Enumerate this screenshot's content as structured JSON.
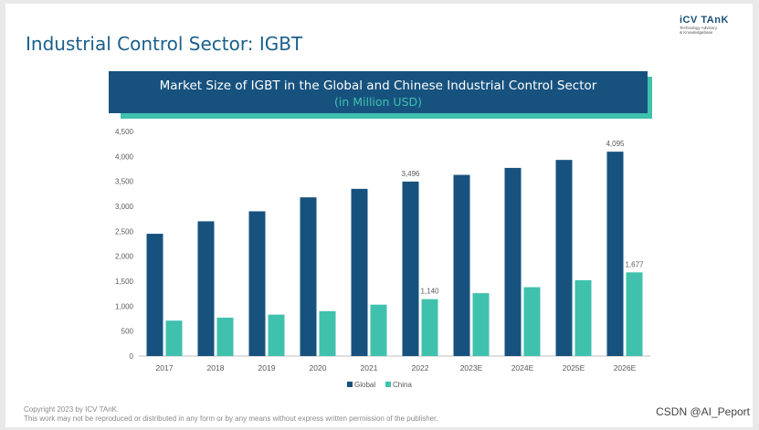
{
  "page": {
    "title": "Industrial Control Sector: IGBT",
    "logo_name": "iCV TAnK",
    "logo_sub1": "Technology Advisory",
    "logo_sub2": "& Knowledgebase",
    "banner_title": "Market Size of IGBT in the Global and Chinese Industrial Control Sector",
    "banner_subtitle": "(in Million USD)",
    "footer_line1": "Copyright  2023 by ICV TAnK.",
    "footer_line2": "This work may not be reproduced or distributed in any form or by any means without express written permission of the publisher.",
    "watermark": "CSDN @AI_Peport"
  },
  "colors": {
    "global": "#17527f",
    "china": "#3fc1ad",
    "axis": "#bfbfbf",
    "text": "#595959"
  },
  "chart_data": {
    "type": "bar",
    "title": "Market Size of IGBT in the Global and Chinese Industrial Control Sector",
    "subtitle": "(in Million USD)",
    "categories": [
      "2017",
      "2018",
      "2019",
      "2020",
      "2021",
      "2022",
      "2023E",
      "2024E",
      "2025E",
      "2026E"
    ],
    "series": [
      {
        "name": "Global",
        "values": [
          2450,
          2700,
          2900,
          3180,
          3350,
          3496,
          3630,
          3770,
          3930,
          4095
        ]
      },
      {
        "name": "China",
        "values": [
          710,
          770,
          830,
          900,
          1030,
          1140,
          1260,
          1380,
          1520,
          1677
        ]
      }
    ],
    "data_labels": [
      {
        "series": 0,
        "index": 5,
        "text": "3,496"
      },
      {
        "series": 0,
        "index": 9,
        "text": "4,095"
      },
      {
        "series": 1,
        "index": 5,
        "text": "1,140"
      },
      {
        "series": 1,
        "index": 9,
        "text": "1,677"
      }
    ],
    "yticks": [
      "0",
      "500",
      "1,000",
      "1,500",
      "2,000",
      "2,500",
      "3,000",
      "3,500",
      "4,000",
      "4,500"
    ],
    "ylim": [
      0,
      4500
    ],
    "grid": false,
    "legend": "bottom-center"
  }
}
